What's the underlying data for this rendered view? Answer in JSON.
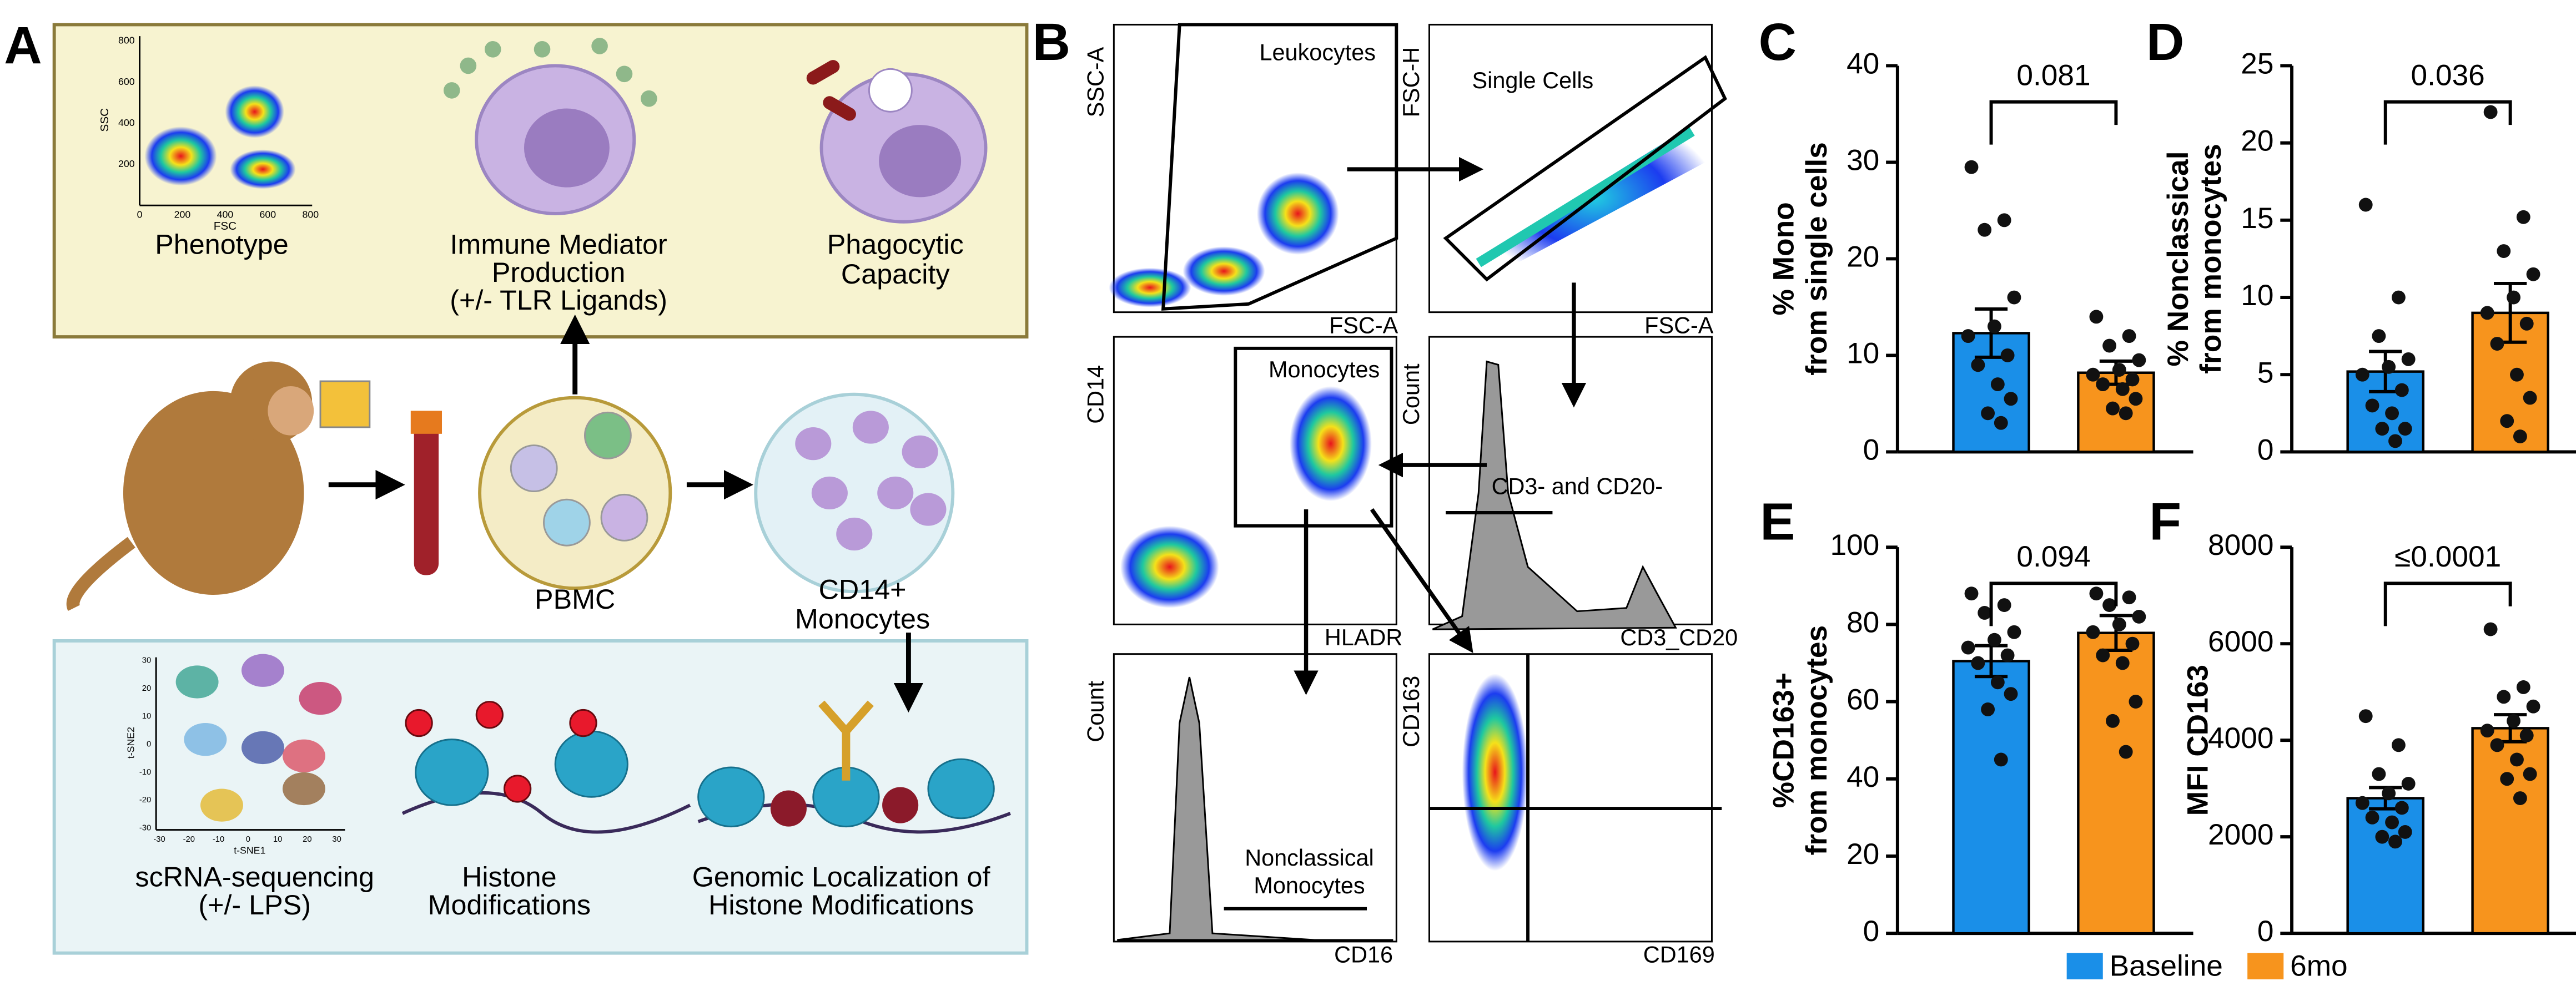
{
  "figure": {
    "panel_letters": [
      "A",
      "B",
      "C",
      "D",
      "E",
      "F"
    ],
    "panel_a": {
      "phenotype_plot": {
        "xlabel": "FSC",
        "ylabel": "SSC",
        "xticks": [
          "0",
          "200",
          "400",
          "600",
          "800"
        ],
        "yticks": [
          "200",
          "400",
          "600",
          "800"
        ]
      },
      "phenotype": "Phenotype",
      "immune": [
        "Immune Mediator",
        "Production",
        "(+/- TLR Ligands)"
      ],
      "phagocytic": [
        "Phagocytic",
        "Capacity"
      ],
      "pbmc": "PBMC",
      "cd14": [
        "CD14+",
        "Monocytes"
      ],
      "tsne_plot": {
        "xlabel": "t-SNE1",
        "ylabel": "t-SNE2",
        "xticks": [
          "-30",
          "-20",
          "-10",
          "0",
          "10",
          "20",
          "30"
        ],
        "yticks": [
          "30",
          "20",
          "10",
          "0",
          "-10",
          "-20",
          "-30"
        ]
      },
      "scrna": [
        "scRNA-sequencing",
        "(+/- LPS)"
      ],
      "histone": [
        "Histone",
        "Modifications"
      ],
      "genomic": [
        "Genomic Localization of",
        "Histone Modifications"
      ]
    },
    "panel_b": {
      "plots": [
        {
          "xlabel": "FSC-A",
          "ylabel": "SSC-A",
          "gate": "Leukocytes"
        },
        {
          "xlabel": "FSC-A",
          "ylabel": "FSC-H",
          "gate": "Single Cells"
        },
        {
          "xlabel": "HLADR",
          "ylabel": "CD14",
          "gate": "Monocytes"
        },
        {
          "xlabel": "CD3_CD20",
          "ylabel": "Count",
          "gate": "CD3- and CD20-"
        },
        {
          "xlabel": "CD16",
          "ylabel": "Count",
          "gate": [
            "Nonclassical",
            "Monocytes"
          ]
        },
        {
          "xlabel": "CD169",
          "ylabel": "CD163"
        }
      ]
    },
    "legend": [
      {
        "name": "Baseline",
        "color": "#1a8fe8"
      },
      {
        "name": "6mo",
        "color": "#f7941d"
      }
    ]
  },
  "chart_data": [
    {
      "type": "bar",
      "ylabel": [
        "% Mono",
        "from single cells"
      ],
      "ylim": [
        0,
        40
      ],
      "yticks": [
        0,
        10,
        20,
        30,
        40
      ],
      "annotation": "0.081",
      "series": [
        {
          "values": [
            12.3
          ],
          "errors": [
            2.5
          ],
          "points": [
            29.5,
            24,
            23,
            16,
            13,
            12,
            10,
            9,
            7,
            5.5,
            4,
            3
          ]
        },
        {
          "values": [
            8.2
          ],
          "errors": [
            1.2
          ],
          "points": [
            14,
            12,
            11,
            9.5,
            8.5,
            8,
            7.5,
            7,
            6.5,
            5.5,
            4.5,
            4
          ]
        }
      ]
    },
    {
      "type": "bar",
      "ylabel": [
        "% Nonclassical",
        "from monocytes"
      ],
      "ylim": [
        0,
        25
      ],
      "yticks": [
        0,
        5,
        10,
        15,
        20,
        25
      ],
      "annotation": "0.036",
      "series": [
        {
          "values": [
            5.2
          ],
          "errors": [
            1.3
          ],
          "points": [
            16,
            10,
            7.5,
            6,
            5.5,
            5,
            4,
            3,
            2.5,
            1.5,
            1.5,
            0.7
          ]
        },
        {
          "values": [
            9.0
          ],
          "errors": [
            1.9
          ],
          "points": [
            22,
            15.2,
            13,
            11.5,
            10,
            9,
            8.3,
            7,
            5,
            3.5,
            2,
            1
          ]
        }
      ]
    },
    {
      "type": "bar",
      "ylabel": [
        "%CD163+",
        "from monocytes"
      ],
      "ylim": [
        0,
        100
      ],
      "yticks": [
        0,
        20,
        40,
        60,
        80,
        100
      ],
      "annotation": "0.094",
      "series": [
        {
          "values": [
            70.5
          ],
          "errors": [
            4
          ],
          "points": [
            88,
            85,
            83,
            78,
            76,
            74,
            72,
            70,
            65,
            62,
            58,
            45
          ]
        },
        {
          "values": [
            77.8
          ],
          "errors": [
            4.5
          ],
          "points": [
            88,
            87,
            85,
            82,
            80,
            78,
            75,
            72,
            70,
            60,
            55,
            47
          ]
        }
      ]
    },
    {
      "type": "bar",
      "ylabel": [
        "MFI CD163"
      ],
      "ylim": [
        0,
        8000
      ],
      "yticks": [
        0,
        2000,
        4000,
        6000,
        8000
      ],
      "annotation": "≤0.0001",
      "series": [
        {
          "values": [
            2800
          ],
          "errors": [
            220
          ],
          "points": [
            4500,
            3900,
            3300,
            3100,
            2900,
            2700,
            2600,
            2400,
            2300,
            2100,
            2000,
            1900
          ]
        },
        {
          "values": [
            4250
          ],
          "errors": [
            280
          ],
          "points": [
            6300,
            5100,
            4900,
            4700,
            4400,
            4200,
            4100,
            3900,
            3600,
            3300,
            3200,
            2800
          ]
        }
      ]
    }
  ]
}
